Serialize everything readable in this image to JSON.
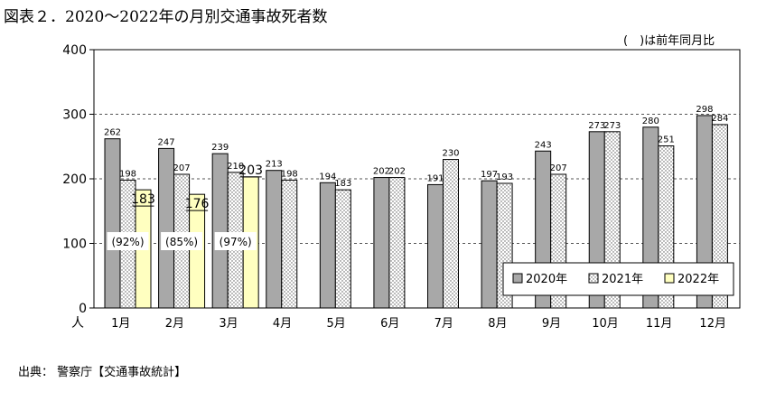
{
  "header": {
    "title": "図表２．2020～2022年の月別交通事故死者数",
    "note": "(　)は前年同月比"
  },
  "footer": {
    "source": "出典： 警察庁【交通事故統計】"
  },
  "chart_data": {
    "type": "bar",
    "title": "図表２．2020～2022年の月別交通事故死者数",
    "xlabel": "",
    "ylabel": "人",
    "ylim": [
      0,
      400
    ],
    "yticks": [
      "0",
      "100",
      "200",
      "300",
      "400"
    ],
    "grid": true,
    "legend_position": "bottom-right",
    "categories": [
      "1月",
      "2月",
      "3月",
      "4月",
      "5月",
      "6月",
      "7月",
      "8月",
      "9月",
      "10月",
      "11月",
      "12月"
    ],
    "series": [
      {
        "name": "2020年",
        "color": "#a8a8a8",
        "values": [
          262,
          247,
          239,
          213,
          194,
          202,
          191,
          197,
          243,
          273,
          280,
          298
        ]
      },
      {
        "name": "2021年",
        "color": "#ffffff",
        "pattern": "dots",
        "values": [
          198,
          207,
          210,
          198,
          183,
          202,
          230,
          193,
          207,
          273,
          251,
          284
        ]
      },
      {
        "name": "2022年",
        "color": "#ffffc0",
        "values": [
          183,
          176,
          203,
          null,
          null,
          null,
          null,
          null,
          null,
          null,
          null,
          null
        ]
      }
    ],
    "annotations": [
      "(92%)",
      "(85%)",
      "(97%)"
    ]
  }
}
